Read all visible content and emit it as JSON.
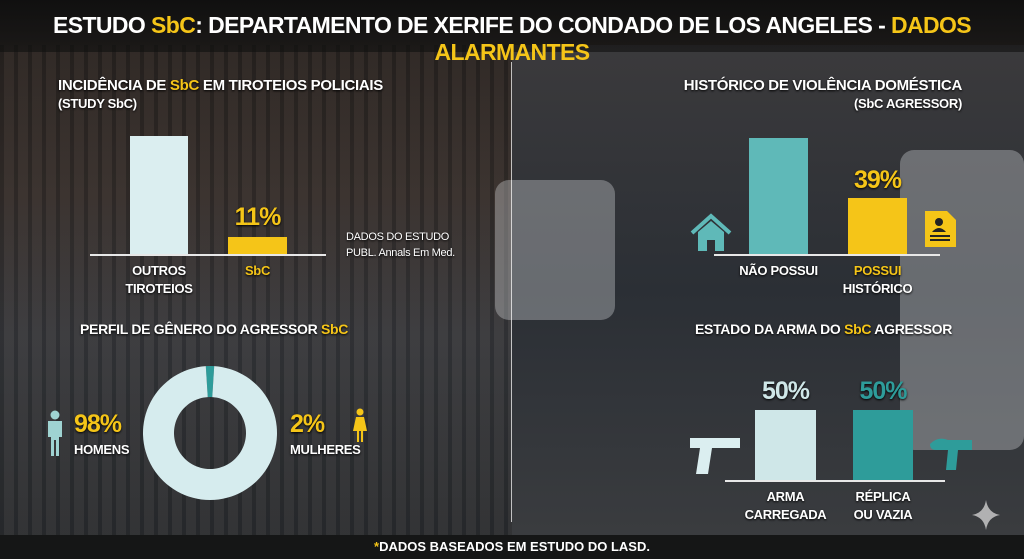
{
  "title": {
    "prefix": "ESTUDO ",
    "highlight": "SbC",
    "rest": ": DEPARTAMENTO DE XERIFE DO CONDADO DE LOS ANGELES - ",
    "alert": "DADOS ALARMANTES"
  },
  "colors": {
    "yellow": "#f5c518",
    "light": "#d6ecee",
    "teal": "#2e9c9a",
    "teal_bar": "#5fb9b8"
  },
  "incidence": {
    "title_a": "INCIDÊNCIA DE ",
    "title_hl": "SbC",
    "title_b": " EM TIROTEIOS POLICIAIS",
    "subtitle": "(STUDY SbC)",
    "bars": [
      {
        "label_1": "OUTROS",
        "label_2": "TIROTEIOS",
        "percent": 89
      },
      {
        "label_1": "SbC",
        "percent": 11,
        "value_label": "11%"
      }
    ],
    "source_1": "DADOS DO ESTUDO",
    "source_2": "PUBL. Annals Em Med."
  },
  "domestic": {
    "title": "HISTÓRICO DE VIOLÊNCIA DOMÉSTICA",
    "subtitle": "(SbC AGRESSOR)",
    "bars": [
      {
        "label": "NÃO POSSUI",
        "percent": 61,
        "icon": "house-icon"
      },
      {
        "label_1": "POSSUI",
        "label_2": "HISTÓRICO",
        "percent": 39,
        "value_label": "39%",
        "icon": "document-person-icon"
      }
    ]
  },
  "gender": {
    "title_a": "PERFIL DE GÊNERO DO AGRESSOR ",
    "title_hl": "SbC",
    "men": {
      "value": "98%",
      "label": "HOMENS",
      "percent": 98
    },
    "women": {
      "value": "2%",
      "label": "MULHERES",
      "percent": 2
    }
  },
  "weapon": {
    "title_a": "ESTADO DA ARMA DO ",
    "title_hl": "SbC",
    "title_b": " AGRESSOR",
    "bars": [
      {
        "value": "50%",
        "label_1": "ARMA",
        "label_2": "CARREGADA",
        "percent": 50
      },
      {
        "value": "50%",
        "label_1": "RÉPLICA",
        "label_2": "OU VAZIA",
        "percent": 50
      }
    ]
  },
  "footer": {
    "star": "*",
    "text": "DADOS BASEADOS EM ESTUDO DO LASD."
  }
}
